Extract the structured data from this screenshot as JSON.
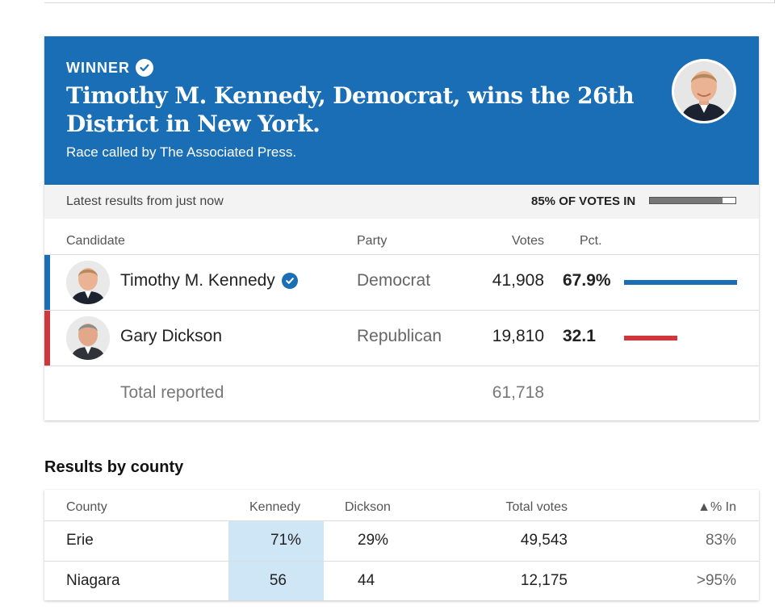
{
  "banner": {
    "winner_label": "WINNER",
    "headline": "Timothy M. Kennedy, Democrat, wins the 26th District in New York.",
    "called_by": "Race called by The Associated Press."
  },
  "status": {
    "latest": "Latest results from just now",
    "votes_in": "85% OF VOTES IN",
    "votes_in_fraction": 0.85
  },
  "columns": {
    "candidate": "Candidate",
    "party": "Party",
    "votes": "Votes",
    "pct": "Pct."
  },
  "candidates": [
    {
      "name": "Timothy M. Kennedy",
      "party": "Democrat",
      "votes": "41,908",
      "pct": "67.9%",
      "pct_value": 67.9,
      "color": "#1a6eb5",
      "winner": true
    },
    {
      "name": "Gary Dickson",
      "party": "Republican",
      "votes": "19,810",
      "pct": "32.1",
      "pct_value": 32.1,
      "color": "#d0373c",
      "winner": false
    }
  ],
  "total": {
    "label": "Total reported",
    "votes": "61,718"
  },
  "county": {
    "title": "Results by county",
    "headers": {
      "county": "County",
      "kennedy": "Kennedy",
      "dickson": "Dickson",
      "total": "Total votes",
      "pct_in": "▲% In"
    },
    "rows": [
      {
        "county": "Erie",
        "kennedy": "71%",
        "dickson": "29%",
        "total": "49,543",
        "pct_in": "83%"
      },
      {
        "county": "Niagara",
        "kennedy": "56",
        "dickson": "44",
        "total": "12,175",
        "pct_in": ">95%"
      }
    ],
    "highlight_color": "#cfe6f7"
  },
  "colors": {
    "banner": "#1a6eb5",
    "democrat": "#1a6eb5",
    "republican": "#d0373c"
  },
  "icons": {
    "verified": "verified-check-icon"
  }
}
